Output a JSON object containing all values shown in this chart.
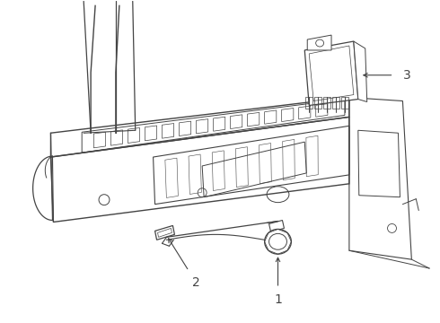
{
  "bg_color": "#ffffff",
  "line_color": "#444444",
  "figsize": [
    4.9,
    3.6
  ],
  "dpi": 100,
  "label1": "1",
  "label2": "2",
  "label3": "3"
}
